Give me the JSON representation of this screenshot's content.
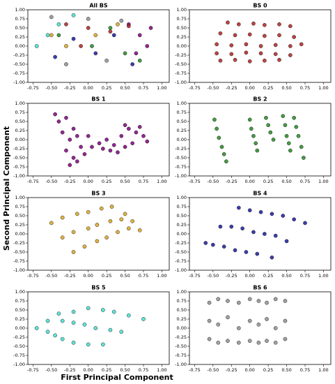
{
  "figure": {
    "xlabel": "First Principal Component",
    "ylabel": "Second Principal Component"
  },
  "chart_data": [
    {
      "type": "scatter",
      "title": "All BS",
      "xlim": [
        -0.82,
        1.1
      ],
      "ylim": [
        -1,
        1
      ],
      "xticks": [
        -0.75,
        {
          "value": -0.5,
          "label": "-0.50"
        },
        -0.25,
        {
          "value": 0,
          "label": "0.00"
        },
        0.25,
        {
          "value": 0.5,
          "label": "0.50"
        },
        0.75,
        {
          "value": 1,
          "label": "1.00"
        }
      ],
      "yticks": [
        {
          "value": 1,
          "label": "1.00"
        },
        0.75,
        {
          "value": 0.5,
          "label": "0.50"
        },
        0.25,
        {
          "value": 0,
          "label": "0.00"
        },
        -0.25,
        {
          "value": -0.5,
          "label": "-0.50"
        },
        -0.75,
        {
          "value": -1,
          "label": "-1.00"
        }
      ],
      "series": [
        {
          "color": "#800080",
          "x": [
            0.55,
            0.7,
            0.8,
            0.65,
            0.85
          ],
          "values": [
            0.6,
            0.3,
            0,
            -0.2,
            0.5
          ]
        },
        {
          "color": "#b22222",
          "x": [
            -0.3,
            0,
            0.3,
            0.55,
            -0.1
          ],
          "values": [
            0.6,
            0.5,
            0.4,
            0.55,
            0
          ]
        },
        {
          "color": "#228b22",
          "x": [
            -0.4,
            0.05,
            0.5,
            0.7,
            0.3
          ],
          "values": [
            0.3,
            0,
            -0.2,
            -0.4,
            0.5
          ]
        },
        {
          "color": "#daa520",
          "x": [
            -0.5,
            -0.3,
            0.1,
            0.4
          ],
          "values": [
            0.3,
            0,
            0.3,
            0.6
          ]
        },
        {
          "color": "#1a1aa0",
          "x": [
            -0.45,
            -0.2,
            0.1,
            0.35,
            0.6
          ],
          "values": [
            -0.3,
            0.2,
            -0.2,
            0.3,
            -0.5
          ]
        },
        {
          "color": "#40e0d0",
          "x": [
            -0.7,
            -0.55,
            -0.4,
            -0.2
          ],
          "values": [
            0,
            0.3,
            0.6,
            0.85
          ]
        },
        {
          "color": "#909090",
          "x": [
            -0.5,
            -0.3,
            0,
            0.25,
            0.45
          ],
          "values": [
            0.8,
            -0.5,
            0.75,
            -0.4,
            0.7
          ]
        }
      ]
    },
    {
      "type": "scatter",
      "title": "BS 0",
      "xlim": [
        -0.82,
        1.1
      ],
      "ylim": [
        -1,
        1
      ],
      "xticks": [
        -0.75,
        {
          "value": -0.5,
          "label": "-0.50"
        },
        -0.25,
        {
          "value": 0,
          "label": "0.00"
        },
        0.25,
        {
          "value": 0.5,
          "label": "0.50"
        },
        0.75,
        {
          "value": 1,
          "label": "1.00"
        }
      ],
      "yticks": [
        {
          "value": 1,
          "label": "1.00"
        },
        0.75,
        {
          "value": 0.5,
          "label": "0.50"
        },
        0.25,
        {
          "value": 0,
          "label": "0.00"
        },
        -0.25,
        {
          "value": -0.5,
          "label": "-0.50"
        },
        -0.75,
        {
          "value": -1,
          "label": "-1.00"
        }
      ],
      "series": [
        {
          "color": "#b22222",
          "x": [
            -0.3,
            -0.15,
            0.05,
            0.2,
            0.4,
            0.55,
            -0.4,
            -0.2,
            0,
            0.2,
            0.4,
            0.6,
            -0.45,
            -0.25,
            -0.05,
            0.15,
            0.35,
            0.55,
            0.7,
            -0.45,
            -0.25,
            -0.05,
            0.15,
            0.35,
            0.55,
            -0.4,
            -0.2,
            0,
            0.2,
            0.4
          ],
          "values": [
            0.65,
            0.6,
            0.62,
            0.58,
            0.6,
            0.55,
            0.35,
            0.3,
            0.32,
            0.28,
            0.3,
            0.25,
            0.05,
            0.02,
            0.05,
            0,
            0.03,
            0,
            0.05,
            -0.2,
            -0.22,
            -0.18,
            -0.2,
            -0.22,
            -0.25,
            -0.4,
            -0.38,
            -0.42,
            -0.4,
            -0.38
          ]
        }
      ]
    },
    {
      "type": "scatter",
      "title": "BS 1",
      "xlim": [
        -0.82,
        1.1
      ],
      "ylim": [
        -1,
        1
      ],
      "xticks": [
        -0.75,
        {
          "value": -0.5,
          "label": "-0.50"
        },
        -0.25,
        {
          "value": 0,
          "label": "0.00"
        },
        0.25,
        {
          "value": 0.5,
          "label": "0.50"
        },
        0.75,
        {
          "value": 1,
          "label": "1.00"
        }
      ],
      "yticks": [
        {
          "value": 1,
          "label": "1.00"
        },
        0.75,
        {
          "value": 0.5,
          "label": "0.50"
        },
        0.25,
        {
          "value": 0,
          "label": "0.00"
        },
        -0.25,
        {
          "value": -0.5,
          "label": "-0.50"
        },
        -0.75,
        {
          "value": -1,
          "label": "-1.00"
        }
      ],
      "series": [
        {
          "color": "#800080",
          "x": [
            -0.45,
            -0.4,
            -0.3,
            -0.2,
            -0.35,
            -0.25,
            -0.15,
            -0.3,
            -0.2,
            -0.1,
            0,
            -0.25,
            -0.15,
            -0.05,
            0.05,
            0.15,
            0.25,
            0.35,
            0.45,
            0.55,
            0.65,
            0.75,
            0.3,
            0.4,
            0.5,
            0.6,
            0.7,
            0.8,
            0.2,
            0.5
          ],
          "values": [
            0.7,
            0.5,
            0.6,
            0.3,
            0.2,
            0,
            0.1,
            -0.3,
            -0.5,
            -0.2,
            0.1,
            -0.7,
            -0.6,
            -0.4,
            -0.2,
            -0.1,
            0,
            -0.15,
            0.1,
            0.3,
            0.2,
            0.1,
            -0.3,
            -0.35,
            -0.2,
            -0.1,
            0.35,
            -0.05,
            -0.25,
            0.4
          ]
        }
      ]
    },
    {
      "type": "scatter",
      "title": "BS 2",
      "xlim": [
        -0.82,
        1.1
      ],
      "ylim": [
        -1,
        1
      ],
      "xticks": [
        -0.75,
        {
          "value": -0.5,
          "label": "-0.50"
        },
        -0.25,
        {
          "value": 0,
          "label": "0.00"
        },
        0.25,
        {
          "value": 0.5,
          "label": "0.50"
        },
        0.75,
        {
          "value": 1,
          "label": "1.00"
        }
      ],
      "yticks": [
        {
          "value": 1,
          "label": "1.00"
        },
        0.75,
        {
          "value": 0.5,
          "label": "0.50"
        },
        0.25,
        {
          "value": 0,
          "label": "0.00"
        },
        -0.25,
        {
          "value": -0.5,
          "label": "-0.50"
        },
        -0.75,
        {
          "value": -1,
          "label": "-1.00"
        }
      ],
      "series": [
        {
          "color": "#228b22",
          "x": [
            -0.48,
            -0.45,
            -0.42,
            -0.38,
            -0.35,
            -0.32,
            0,
            0.02,
            0.05,
            0.08,
            0.1,
            0.22,
            0.25,
            0.28,
            0.32,
            0.45,
            0.48,
            0.5,
            0.53,
            0.55,
            0.6,
            0.63,
            0.66,
            0.7,
            0.73
          ],
          "values": [
            0.55,
            0.3,
            0.05,
            -0.2,
            -0.4,
            -0.6,
            0.55,
            0.3,
            0.1,
            -0.1,
            -0.3,
            0.6,
            0.4,
            0.2,
            0,
            0.65,
            0.4,
            0.1,
            -0.1,
            -0.3,
            0.6,
            0.35,
            0.1,
            -0.2,
            -0.5
          ]
        }
      ]
    },
    {
      "type": "scatter",
      "title": "BS 3",
      "xlim": [
        -0.82,
        1.1
      ],
      "ylim": [
        -1,
        1
      ],
      "xticks": [
        -0.75,
        {
          "value": -0.5,
          "label": "-0.50"
        },
        -0.25,
        {
          "value": 0,
          "label": "0.00"
        },
        0.25,
        {
          "value": 0.5,
          "label": "0.50"
        },
        0.75,
        {
          "value": 1,
          "label": "1.00"
        }
      ],
      "yticks": [
        {
          "value": 1,
          "label": "1.00"
        },
        0.75,
        {
          "value": 0.5,
          "label": "0.50"
        },
        0.25,
        {
          "value": 0,
          "label": "0.00"
        },
        -0.25,
        {
          "value": -0.5,
          "label": "-0.50"
        },
        -0.75,
        {
          "value": -1,
          "label": "-1.00"
        }
      ],
      "series": [
        {
          "color": "#daa520",
          "x": [
            -0.5,
            -0.35,
            -0.2,
            -0.35,
            -0.2,
            -0.05,
            -0.15,
            0,
            0.12,
            0,
            0.12,
            0.25,
            0.18,
            0.3,
            0.4,
            0.32,
            0.45,
            0.55,
            0.5,
            0.6,
            0.7
          ],
          "values": [
            0.3,
            -0.1,
            -0.5,
            0.45,
            0.05,
            -0.35,
            0.55,
            0.15,
            -0.2,
            0.6,
            0.25,
            -0.1,
            0.7,
            0.35,
            0.05,
            0.75,
            0.4,
            0.15,
            0.55,
            0.35,
            0.1
          ]
        }
      ]
    },
    {
      "type": "scatter",
      "title": "BS 4",
      "xlim": [
        -0.82,
        1.1
      ],
      "ylim": [
        -1,
        1
      ],
      "xticks": [
        -0.75,
        {
          "value": -0.5,
          "label": "-0.50"
        },
        -0.25,
        {
          "value": 0,
          "label": "0.00"
        },
        0.25,
        {
          "value": 0.5,
          "label": "0.50"
        },
        0.75,
        {
          "value": 1,
          "label": "1.00"
        }
      ],
      "yticks": [
        {
          "value": 1,
          "label": "1.00"
        },
        0.75,
        {
          "value": 0.5,
          "label": "0.50"
        },
        0.25,
        {
          "value": 0,
          "label": "0.00"
        },
        -0.25,
        {
          "value": -0.5,
          "label": "-0.50"
        },
        -0.75,
        {
          "value": -1,
          "label": "-1.00"
        }
      ],
      "series": [
        {
          "color": "#1a1aa0",
          "x": [
            -0.6,
            -0.4,
            -0.15,
            -0.5,
            -0.25,
            0,
            -0.35,
            -0.1,
            0.15,
            -0.2,
            0.05,
            0.3,
            -0.05,
            0.2,
            0.45,
            0.1,
            0.35,
            0.6,
            0.3,
            0.5,
            0.75
          ],
          "values": [
            -0.25,
            0.2,
            0.72,
            -0.3,
            0.2,
            0.65,
            -0.35,
            0.15,
            0.6,
            -0.45,
            0.05,
            0.55,
            -0.5,
            0,
            0.5,
            -0.55,
            -0.05,
            0.4,
            -0.65,
            -0.2,
            0.3
          ]
        }
      ]
    },
    {
      "type": "scatter",
      "title": "BS 5",
      "xlim": [
        -0.82,
        1.1
      ],
      "ylim": [
        -1,
        1
      ],
      "xticks": [
        -0.75,
        {
          "value": -0.5,
          "label": "-0.50"
        },
        -0.25,
        {
          "value": 0,
          "label": "0.00"
        },
        0.25,
        {
          "value": 0.5,
          "label": "0.50"
        },
        0.75,
        {
          "value": 1,
          "label": "1.00"
        }
      ],
      "yticks": [
        {
          "value": 1,
          "label": "1.00"
        },
        0.75,
        {
          "value": 0.5,
          "label": "0.50"
        },
        0.25,
        {
          "value": 0,
          "label": "0.00"
        },
        -0.25,
        {
          "value": -0.5,
          "label": "-0.50"
        },
        -0.75,
        {
          "value": -1,
          "label": "-1.00"
        }
      ],
      "series": [
        {
          "color": "#40e0d0",
          "x": [
            -0.7,
            -0.55,
            -0.4,
            -0.55,
            -0.35,
            -0.2,
            -0.45,
            -0.2,
            0,
            -0.35,
            -0.05,
            0.2,
            -0.2,
            0.1,
            0.35,
            0,
            0.3,
            0.55,
            0.2,
            0.45,
            0.75
          ],
          "values": [
            0,
            0.2,
            0.4,
            -0.1,
            0.2,
            0.45,
            -0.2,
            0.15,
            0.55,
            -0.3,
            0.1,
            0.5,
            -0.4,
            0,
            0.45,
            -0.45,
            -0.05,
            0.35,
            -0.45,
            -0.1,
            0.25
          ]
        }
      ]
    },
    {
      "type": "scatter",
      "title": "BS 6",
      "xlim": [
        -0.82,
        1.1
      ],
      "ylim": [
        -1,
        1
      ],
      "xticks": [
        -0.75,
        {
          "value": -0.5,
          "label": "-0.50"
        },
        -0.25,
        {
          "value": 0,
          "label": "0.00"
        },
        0.25,
        {
          "value": 0.5,
          "label": "0.50"
        },
        0.75,
        {
          "value": 1,
          "label": "1.00"
        }
      ],
      "yticks": [
        {
          "value": 1,
          "label": "1.00"
        },
        0.75,
        {
          "value": 0.5,
          "label": "0.50"
        },
        0.25,
        {
          "value": 0,
          "label": "0.00"
        },
        -0.25,
        {
          "value": -0.5,
          "label": "-0.50"
        },
        -0.75,
        {
          "value": -1,
          "label": "-1.00"
        }
      ],
      "series": [
        {
          "color": "#909090",
          "x": [
            -0.55,
            -0.55,
            -0.55,
            -0.43,
            -0.43,
            -0.43,
            -0.3,
            -0.3,
            -0.3,
            -0.15,
            -0.15,
            -0.15,
            0,
            0,
            0,
            0.12,
            0.12,
            0.12,
            0.23,
            0.23,
            0.23,
            0.35,
            0.35,
            0.35,
            0.48,
            0.48,
            0.48
          ],
          "values": [
            0.7,
            0.2,
            -0.3,
            0.8,
            0.1,
            -0.4,
            0.75,
            0.3,
            -0.35,
            0.7,
            0,
            -0.4,
            0.8,
            0.2,
            -0.35,
            0.75,
            0.1,
            -0.4,
            0.7,
            0.25,
            -0.35,
            0.8,
            0,
            -0.4,
            0.75,
            0.2,
            -0.3
          ]
        }
      ]
    }
  ]
}
